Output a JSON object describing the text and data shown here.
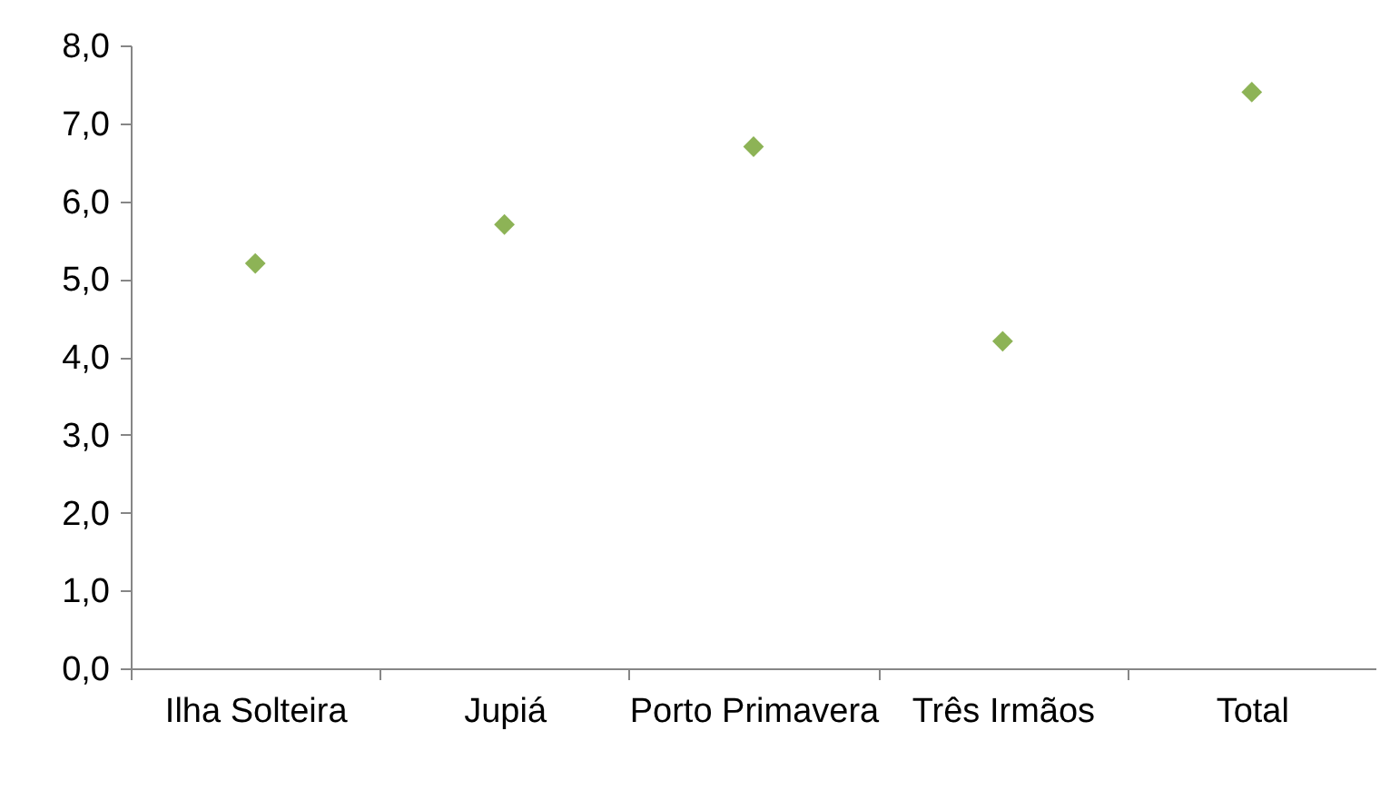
{
  "chart_data": {
    "type": "scatter",
    "categories": [
      "Ilha Solteira",
      "Jupiá",
      "Porto Primavera",
      "Três Irmãos",
      "Total"
    ],
    "series": [
      {
        "color": "#8db356",
        "values": [
          5.2,
          5.7,
          6.7,
          4.2,
          7.4
        ]
      }
    ],
    "marker": "diamond",
    "grid": false,
    "ylim": [
      0,
      8
    ],
    "yticks": [
      {
        "value": 0,
        "label": "0,0"
      },
      {
        "value": 1,
        "label": "1,0"
      },
      {
        "value": 2,
        "label": "2,0"
      },
      {
        "value": 3,
        "label": "3,0"
      },
      {
        "value": 4,
        "label": "4,0"
      },
      {
        "value": 5,
        "label": "5,0"
      },
      {
        "value": 6,
        "label": "6,0"
      },
      {
        "value": 7,
        "label": "7,0"
      },
      {
        "value": 8,
        "label": "8,0"
      }
    ]
  }
}
